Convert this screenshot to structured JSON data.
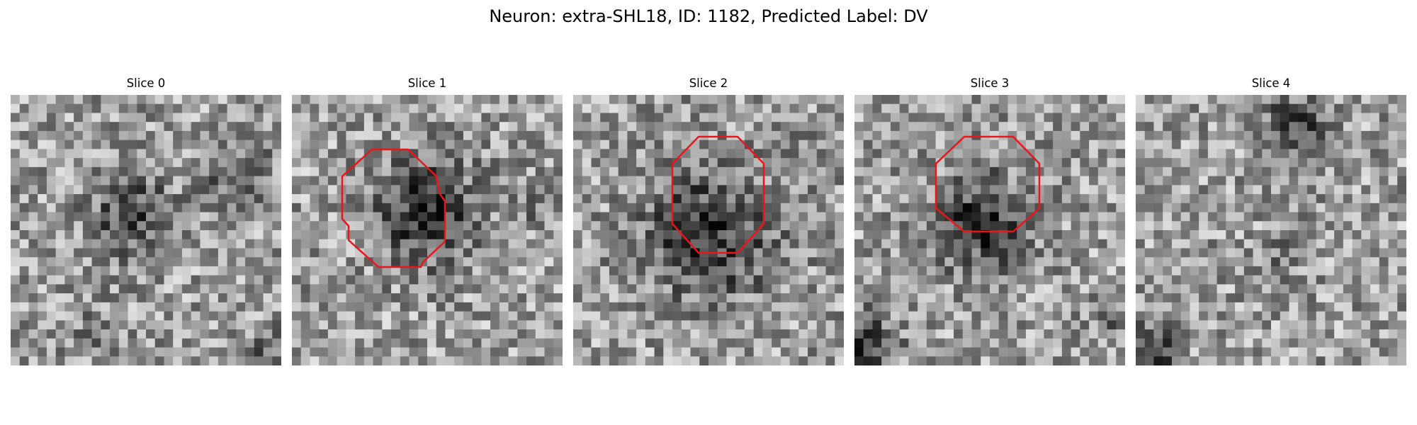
{
  "figure": {
    "title": "Neuron: extra-SHL18, ID: 1182, Predicted Label: DV"
  },
  "colors": {
    "roi_outline": "#e8161a",
    "background": "#ffffff"
  },
  "image_grid": {
    "pixels_per_side": 30,
    "colormap": "gray"
  },
  "slices": [
    {
      "label": "Slice 0",
      "has_roi_outline": false
    },
    {
      "label": "Slice 1",
      "has_roi_outline": true
    },
    {
      "label": "Slice 2",
      "has_roi_outline": true
    },
    {
      "label": "Slice 3",
      "has_roi_outline": true
    },
    {
      "label": "Slice 4",
      "has_roi_outline": false
    }
  ]
}
